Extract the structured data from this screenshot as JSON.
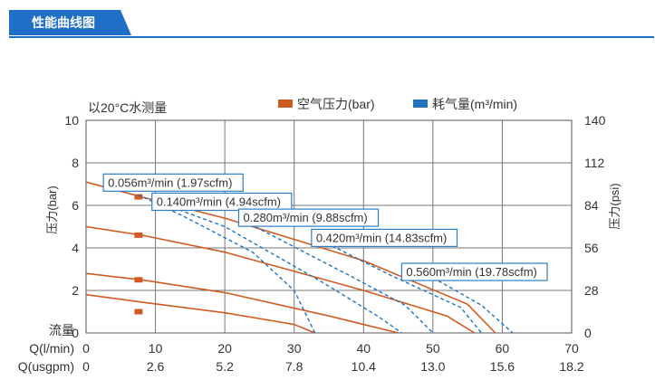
{
  "header": {
    "tab_title": "性能曲线图"
  },
  "chart_data": {
    "type": "line",
    "annotation_top": "以20°C水测量",
    "legend": [
      {
        "label": "空气压力(bar)",
        "color": "#d05a22"
      },
      {
        "label": "耗气量(m³/min)",
        "color": "#1f73c0"
      }
    ],
    "y_left": {
      "label": "压力(bar)",
      "ticks": [
        "0",
        "2",
        "4",
        "6",
        "8",
        "10"
      ],
      "range": [
        0,
        10
      ]
    },
    "y_right": {
      "label": "压力(psi)",
      "ticks": [
        "0",
        "28",
        "56",
        "84",
        "112",
        "140"
      ],
      "range": [
        0,
        140
      ]
    },
    "x_axis_rows": [
      {
        "label": "流量",
        "ticks": []
      },
      {
        "label": "Q(l/min)",
        "ticks": [
          "0",
          "10",
          "20",
          "30",
          "40",
          "50",
          "60",
          "70"
        ]
      },
      {
        "label": "Q(usgpm)",
        "ticks": [
          "0",
          "2.6",
          "5.2",
          "7.8",
          "10.4",
          "13.0",
          "15.6",
          "18.2"
        ]
      }
    ],
    "x_range": [
      0,
      70
    ],
    "grid": true,
    "pressure_curves": [
      {
        "name": "",
        "points": [
          [
            0,
            7.1
          ],
          [
            8,
            6.4
          ],
          [
            20,
            5.4
          ],
          [
            40,
            3.4
          ],
          [
            55,
            1.35
          ],
          [
            59,
            0
          ]
        ]
      },
      {
        "name": "",
        "points": [
          [
            0,
            5.0
          ],
          [
            8,
            4.6
          ],
          [
            20,
            3.8
          ],
          [
            40,
            2.0
          ],
          [
            52,
            0.8
          ],
          [
            56,
            0
          ]
        ]
      },
      {
        "name": "",
        "points": [
          [
            0,
            2.8
          ],
          [
            8,
            2.5
          ],
          [
            20,
            1.9
          ],
          [
            35,
            0.8
          ],
          [
            45,
            0
          ]
        ]
      },
      {
        "name": "",
        "points": [
          [
            0,
            1.8
          ],
          [
            8,
            1.45
          ],
          [
            20,
            0.95
          ],
          [
            30,
            0.4
          ],
          [
            33,
            0
          ]
        ]
      }
    ],
    "pressure_markers": [
      [
        7.5,
        6.4
      ],
      [
        7.5,
        4.6
      ],
      [
        7.5,
        2.5
      ],
      [
        7.5,
        1.0
      ]
    ],
    "consumption_curves": [
      {
        "name": "0.056m³/min (1.97scfm)",
        "points": [
          [
            7.5,
            6.5
          ],
          [
            14,
            5.5
          ],
          [
            24,
            3.8
          ],
          [
            30,
            2.0
          ],
          [
            33,
            0
          ]
        ]
      },
      {
        "name": "0.140m³/min (4.94scfm)",
        "points": [
          [
            10,
            6.2
          ],
          [
            20,
            5.0
          ],
          [
            34,
            2.4
          ],
          [
            42,
            0.8
          ],
          [
            45.5,
            0
          ]
        ]
      },
      {
        "name": "0.280m³/min (9.88scfm)",
        "points": [
          [
            22,
            5.4
          ],
          [
            38,
            2.7
          ],
          [
            46,
            1.3
          ],
          [
            50,
            0
          ]
        ]
      },
      {
        "name": "0.420m³/min (14.83scfm)",
        "points": [
          [
            33,
            4.5
          ],
          [
            44,
            2.7
          ],
          [
            54,
            1.2
          ],
          [
            57,
            0
          ]
        ]
      },
      {
        "name": "0.560m³/min (19.78scfm)",
        "points": [
          [
            50,
            2.6
          ],
          [
            57,
            1.3
          ],
          [
            61.5,
            0
          ]
        ]
      }
    ],
    "consumption_labels": [
      {
        "text": "0.056m³/min (1.97scfm)",
        "x": 2.5,
        "y": 7.05
      },
      {
        "text": "0.140m³/min (4.94scfm)",
        "x": 9.5,
        "y": 6.15
      },
      {
        "text": "0.280m³/min (9.88scfm)",
        "x": 22,
        "y": 5.4
      },
      {
        "text": "0.420m³/min (14.83scfm)",
        "x": 32.5,
        "y": 4.45
      },
      {
        "text": "0.560m³/min (19.78scfm)",
        "x": 45.5,
        "y": 2.85
      }
    ]
  }
}
